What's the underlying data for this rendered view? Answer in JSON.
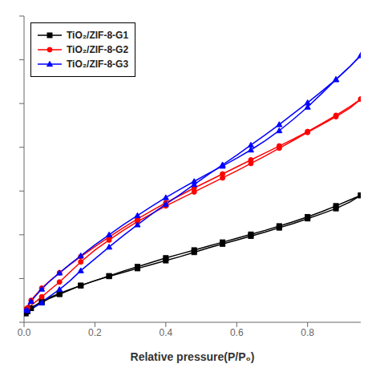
{
  "chart_data": {
    "type": "line",
    "xlabel": "Relative pressure(P/P₀)",
    "xlim": [
      0.0,
      0.95
    ],
    "xticks": [
      {
        "value": 0,
        "label": "0.0"
      },
      0.2,
      0.4,
      0.6,
      0.8
    ],
    "ylim": [
      0,
      70
    ],
    "yticks": [
      0,
      10,
      20,
      30,
      40,
      50,
      60,
      70
    ],
    "tick_labels": "x",
    "legend": "upper left",
    "series": [
      {
        "name": "TiO₂/ZIF-8-G1",
        "color": "black",
        "marker": "square",
        "x": [
          0.005,
          0.01,
          0.02,
          0.03,
          0.05,
          0.07,
          0.1,
          0.13,
          0.16,
          0.2,
          0.24,
          0.28,
          0.32,
          0.36,
          0.4,
          0.44,
          0.48,
          0.52,
          0.56,
          0.6,
          0.64,
          0.68,
          0.72,
          0.76,
          0.8,
          0.84,
          0.88,
          0.92,
          0.95
        ],
        "values": [
          2.0,
          2.5,
          3.2,
          3.8,
          4.8,
          5.6,
          6.6,
          7.5,
          8.4,
          9.5,
          10.6,
          11.7,
          12.7,
          13.7,
          14.7,
          15.6,
          16.5,
          17.4,
          18.3,
          19.2,
          20.1,
          21.0,
          22.0,
          23.0,
          24.1,
          25.3,
          26.6,
          28.0,
          29.0
        ],
        "desorption": {
          "x": [
            0.95,
            0.92,
            0.88,
            0.84,
            0.8,
            0.76,
            0.72,
            0.68,
            0.64,
            0.6,
            0.56,
            0.52,
            0.48,
            0.44,
            0.4,
            0.36,
            0.32,
            0.28,
            0.24,
            0.2,
            0.16,
            0.13,
            0.1,
            0.07,
            0.05,
            0.03,
            0.01,
            0.005
          ],
          "values": [
            29.0,
            27.5,
            26.0,
            24.8,
            23.7,
            22.6,
            21.6,
            20.6,
            19.7,
            18.8,
            17.9,
            17.0,
            16.0,
            15.0,
            14.1,
            13.2,
            12.3,
            11.4,
            10.5,
            9.5,
            8.4,
            7.4,
            6.4,
            5.4,
            4.5,
            3.5,
            2.5,
            2.0
          ]
        }
      },
      {
        "name": "TiO₂/ZIF-8-G2",
        "color": "red",
        "marker": "circle",
        "x": [
          0.005,
          0.01,
          0.02,
          0.03,
          0.05,
          0.07,
          0.1,
          0.13,
          0.16,
          0.2,
          0.24,
          0.28,
          0.32,
          0.36,
          0.4,
          0.44,
          0.48,
          0.52,
          0.56,
          0.6,
          0.64,
          0.68,
          0.72,
          0.76,
          0.8,
          0.84,
          0.88,
          0.92,
          0.95
        ],
        "values": [
          3.0,
          3.8,
          5.0,
          6.0,
          7.8,
          9.3,
          11.3,
          13.2,
          15.0,
          17.3,
          19.5,
          21.6,
          23.6,
          25.5,
          27.3,
          29.0,
          30.7,
          32.3,
          33.9,
          35.5,
          37.1,
          38.7,
          40.3,
          41.9,
          43.6,
          45.4,
          47.3,
          49.3,
          51.0
        ],
        "desorption": {
          "x": [
            0.95,
            0.92,
            0.88,
            0.84,
            0.8,
            0.76,
            0.72,
            0.68,
            0.64,
            0.6,
            0.56,
            0.52,
            0.48,
            0.44,
            0.4,
            0.36,
            0.32,
            0.28,
            0.24,
            0.2,
            0.16,
            0.13,
            0.1,
            0.07,
            0.05,
            0.03,
            0.01,
            0.005
          ],
          "values": [
            51.0,
            49.0,
            47.0,
            45.2,
            43.4,
            41.6,
            39.8,
            38.0,
            36.3,
            34.6,
            33.0,
            31.4,
            29.8,
            28.2,
            26.6,
            24.8,
            23.0,
            21.0,
            18.8,
            16.5,
            13.8,
            11.5,
            9.2,
            7.2,
            5.8,
            4.5,
            3.3,
            3.0
          ]
        }
      },
      {
        "name": "TiO₂/ZIF-8-G3",
        "color": "blue",
        "marker": "triangle",
        "x": [
          0.005,
          0.01,
          0.02,
          0.03,
          0.05,
          0.07,
          0.1,
          0.13,
          0.16,
          0.2,
          0.24,
          0.28,
          0.32,
          0.36,
          0.4,
          0.44,
          0.48,
          0.52,
          0.56,
          0.6,
          0.64,
          0.68,
          0.72,
          0.76,
          0.8,
          0.84,
          0.88,
          0.92,
          0.95
        ],
        "values": [
          2.8,
          3.5,
          4.8,
          5.8,
          7.6,
          9.2,
          11.3,
          13.3,
          15.2,
          17.7,
          20.0,
          22.3,
          24.4,
          26.5,
          28.5,
          30.4,
          32.2,
          34.0,
          35.7,
          37.5,
          39.4,
          41.5,
          43.8,
          46.4,
          49.2,
          52.3,
          55.5,
          58.5,
          61.0
        ],
        "desorption": {
          "x": [
            0.95,
            0.92,
            0.88,
            0.84,
            0.8,
            0.76,
            0.72,
            0.68,
            0.64,
            0.6,
            0.56,
            0.52,
            0.48,
            0.44,
            0.4,
            0.36,
            0.32,
            0.28,
            0.24,
            0.2,
            0.16,
            0.13,
            0.1,
            0.07,
            0.05,
            0.03,
            0.01,
            0.005
          ],
          "values": [
            61.0,
            58.5,
            55.5,
            52.8,
            50.2,
            47.7,
            45.2,
            42.8,
            40.5,
            38.2,
            36.0,
            33.8,
            31.5,
            29.2,
            27.0,
            24.7,
            22.3,
            19.8,
            17.2,
            14.5,
            11.8,
            9.5,
            7.5,
            5.8,
            4.5,
            3.5,
            2.7,
            2.8
          ]
        }
      }
    ]
  }
}
